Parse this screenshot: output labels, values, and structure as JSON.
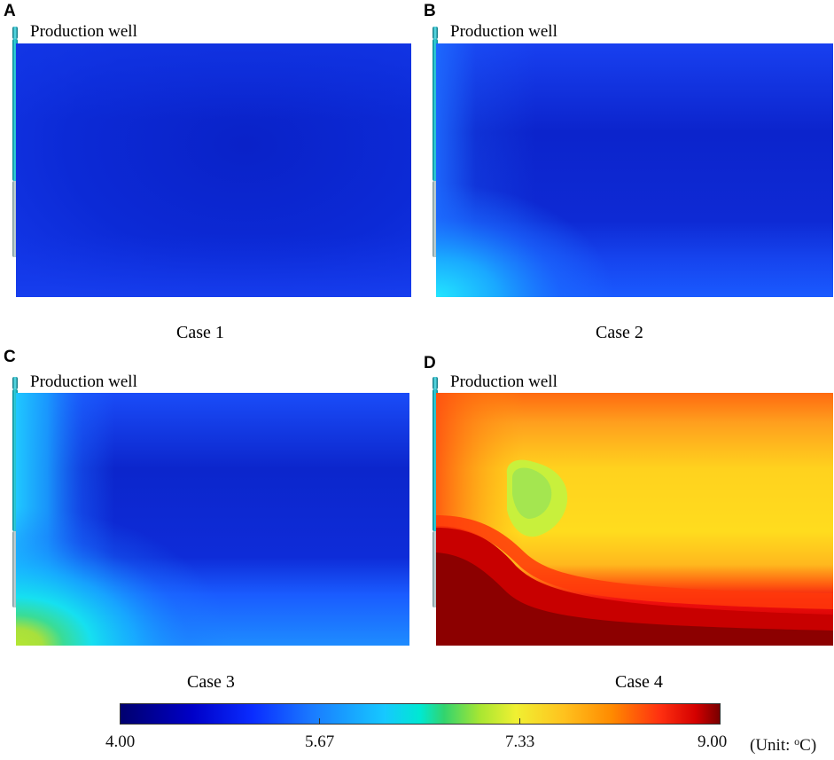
{
  "panels": [
    {
      "letter": "A",
      "well_label": "Production well",
      "case_label": "Case 1"
    },
    {
      "letter": "B",
      "well_label": "Production well",
      "case_label": "Case 2"
    },
    {
      "letter": "C",
      "well_label": "Production well",
      "case_label": "Case 3"
    },
    {
      "letter": "D",
      "well_label": "Production well",
      "case_label": "Case 4"
    }
  ],
  "colorbar": {
    "ticks": [
      "4.00",
      "5.67",
      "7.33",
      "9.00"
    ],
    "unit_prefix": "(Unit: ",
    "unit_sup": "o",
    "unit_suffix": "C)"
  }
}
